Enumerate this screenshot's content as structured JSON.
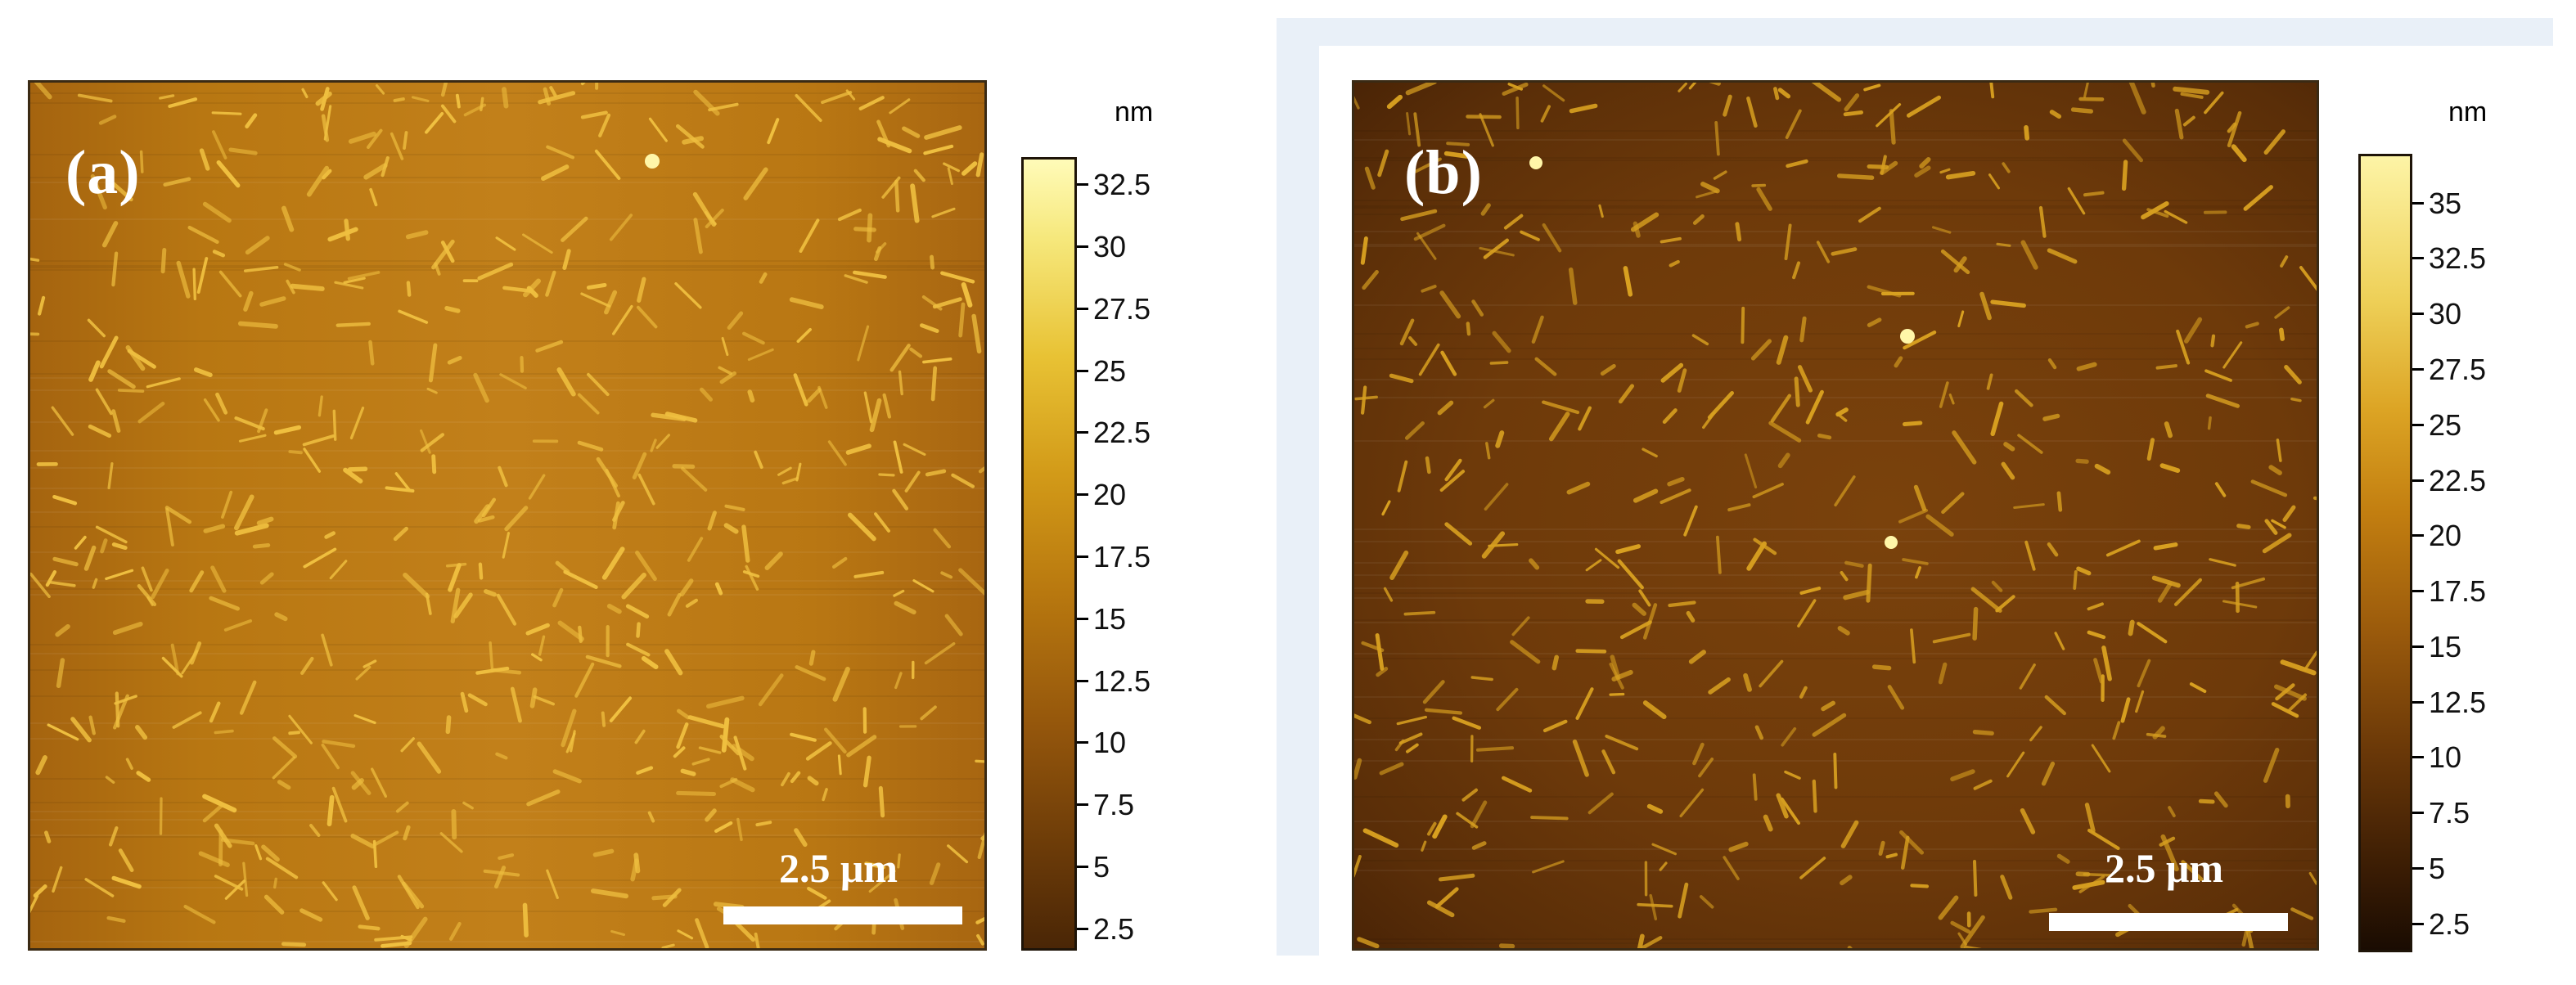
{
  "panels": [
    {
      "label": "(a)",
      "scale_bar_label": "2.5 μm",
      "colorbar": {
        "unit": "nm",
        "min": 1.6,
        "max": 33.6,
        "ticks": [
          "2.5",
          "5",
          "7.5",
          "10",
          "12.5",
          "15",
          "17.5",
          "20",
          "22.5",
          "25",
          "27.5",
          "30",
          "32.5"
        ]
      }
    },
    {
      "label": "(b)",
      "scale_bar_label": "2.5 μm",
      "colorbar": {
        "unit": "nm",
        "min": 1.2,
        "max": 37.2,
        "ticks": [
          "2.5",
          "5",
          "7.5",
          "10",
          "12.5",
          "15",
          "17.5",
          "20",
          "22.5",
          "25",
          "27.5",
          "30",
          "32.5",
          "35"
        ]
      }
    }
  ],
  "colors": {
    "panel_a_base": "#c2801a",
    "panel_b_base": "#6e3a0a",
    "feature_a": "#f0c040",
    "feature_b": "#d8a020",
    "frame_tint": "#e9f0f8"
  }
}
